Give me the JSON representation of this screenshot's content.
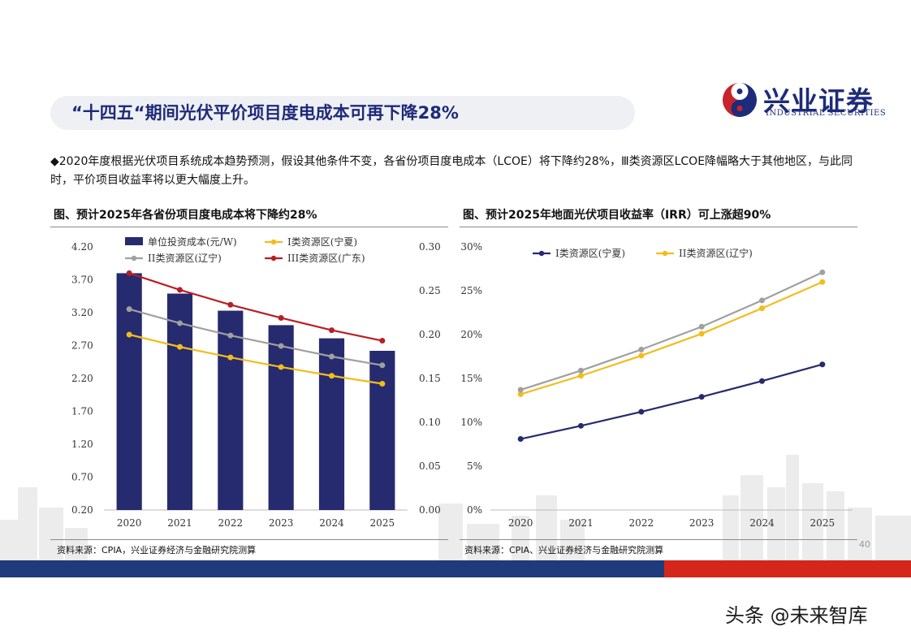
{
  "header": {
    "title": "“十四五“期间光伏平价项目度电成本可再下降28%",
    "logo_cn": "兴业证券",
    "logo_en": "INDUSTRIAL SECURITIES"
  },
  "summary": "◆2020年度根据光伏项目系统成本趋势预测，假设其他条件不变，各省份项目度电成本（LCOE）将下降约28%，Ⅲ类资源区LCOE降幅略大于其他地区，与此同时，平价项目收益率将以更大幅度上升。",
  "left_figure": {
    "title": "图、预计2025年各省份项目度电成本将下降约28%",
    "source": "资料来源：CPIA，兴业证券经济与金融研究院测算"
  },
  "right_figure": {
    "title": "图、预计2025年地面光伏项目收益率（IRR）可上涨超90%",
    "source": "资料来源：CPIA、兴业证券经济与金融研究院测算"
  },
  "page_number": "40",
  "watermark": "头条 @未来智库",
  "colors": {
    "navy": "#262a6e",
    "yellow": "#f2bd1c",
    "gray": "#a0a0a0",
    "red": "#b81f24",
    "brand_blue": "#1f3b7c",
    "brand_red": "#d4261a"
  },
  "chart_data": [
    {
      "type": "bar",
      "categories": [
        "2020",
        "2021",
        "2022",
        "2023",
        "2024",
        "2025"
      ],
      "left_axis": {
        "ylim": [
          0.2,
          4.2
        ],
        "ticks": [
          "0.20",
          "0.70",
          "1.20",
          "1.70",
          "2.20",
          "2.70",
          "3.20",
          "3.70",
          "4.20"
        ]
      },
      "right_axis": {
        "ylim": [
          0.0,
          0.3
        ],
        "ticks": [
          "0.00",
          "0.05",
          "0.10",
          "0.15",
          "0.20",
          "0.25",
          "0.30"
        ]
      },
      "legend_position": "top",
      "series": [
        {
          "name": "单位投资成本(元/W)",
          "type": "bar",
          "axis": "left",
          "color": "#262a6e",
          "values": [
            3.8,
            3.49,
            3.23,
            3.01,
            2.81,
            2.62
          ]
        },
        {
          "name": "I类资源区(宁夏)",
          "type": "line",
          "axis": "right",
          "color": "#f2bd1c",
          "values": [
            0.2,
            0.186,
            0.174,
            0.163,
            0.153,
            0.144
          ]
        },
        {
          "name": "II类资源区(辽宁)",
          "type": "line",
          "axis": "right",
          "color": "#a0a0a0",
          "values": [
            0.229,
            0.213,
            0.199,
            0.187,
            0.175,
            0.165
          ]
        },
        {
          "name": "III类资源区(广东)",
          "type": "line",
          "axis": "right",
          "color": "#b81f24",
          "values": [
            0.27,
            0.251,
            0.234,
            0.219,
            0.205,
            0.193
          ]
        }
      ]
    },
    {
      "type": "line",
      "categories": [
        "2020",
        "2021",
        "2022",
        "2023",
        "2024",
        "2025"
      ],
      "ylim": [
        0,
        30
      ],
      "ticks": [
        "0%",
        "5%",
        "10%",
        "15%",
        "20%",
        "25%",
        "30%"
      ],
      "legend_position": "top",
      "series": [
        {
          "name": "I类资源区(宁夏)",
          "color": "#262a6e",
          "values": [
            8.1,
            9.6,
            11.2,
            12.9,
            14.7,
            16.6
          ]
        },
        {
          "name": "II类资源区(辽宁)",
          "color": "#f2bd1c",
          "values": [
            13.2,
            15.3,
            17.6,
            20.1,
            23.0,
            26.0
          ]
        },
        {
          "name": "",
          "color": "#a0a0a0",
          "values": [
            13.7,
            15.9,
            18.3,
            20.9,
            23.9,
            27.1
          ]
        }
      ]
    }
  ]
}
